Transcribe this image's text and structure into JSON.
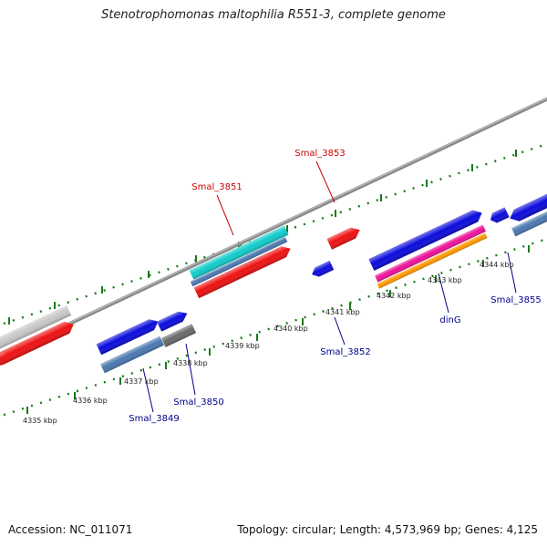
{
  "title": "Stenotrophomonas maltophilia R551-3, complete genome",
  "footer": {
    "accession": "Accession: NC_011071",
    "summary": "Topology: circular; Length: 4,573,969 bp; Genes: 4,125"
  },
  "colors": {
    "backbone": "#8a8a8a",
    "tick": "#1a7a1a",
    "label_forward": "#cc0000",
    "label_reverse": "#00008b",
    "leader_line_forward": "#cc0000",
    "leader_line_reverse": "#00008b"
  },
  "scale": {
    "labels": [
      "4335 kbp",
      "4336 kbp",
      "4337 kbp",
      "4338 kbp",
      "4339 kbp",
      "4340 kbp",
      "4341 kbp",
      "4342 kbp",
      "4343 kbp",
      "4344 kbp"
    ]
  },
  "gene_labels": [
    {
      "text": "Smal_3853",
      "strand": "forward"
    },
    {
      "text": "Smal_3851",
      "strand": "forward"
    },
    {
      "text": "Smal_3852",
      "strand": "reverse"
    },
    {
      "text": "Smal_3855",
      "strand": "reverse"
    },
    {
      "text": "dinG",
      "strand": "reverse"
    },
    {
      "text": "Smal_3850",
      "strand": "reverse"
    },
    {
      "text": "Smal_3849",
      "strand": "reverse"
    }
  ],
  "features": [
    {
      "id": "gene-grey-left",
      "color": "#c8c8c8"
    },
    {
      "id": "gene-red-left-upper",
      "color": "#ee1111"
    },
    {
      "id": "gene-red-left-lower",
      "color": "#ee1111"
    },
    {
      "id": "gene-blue-3849",
      "color": "#0b0bdd"
    },
    {
      "id": "gene-blue-3850",
      "color": "#0b0bdd"
    },
    {
      "id": "cds-steelblue-3849",
      "color": "#4a78b0"
    },
    {
      "id": "cds-grey-3850",
      "color": "#6a6a6a"
    },
    {
      "id": "gene-cyan-3851",
      "color": "#11cccc"
    },
    {
      "id": "cds-steelblue-3851",
      "color": "#4a78b0"
    },
    {
      "id": "gene-red-3851",
      "color": "#ee1111"
    },
    {
      "id": "gene-red-3853",
      "color": "#ee1111"
    },
    {
      "id": "gene-blue-3852",
      "color": "#0b0bdd"
    },
    {
      "id": "gene-blue-dinG",
      "color": "#0b0bdd"
    },
    {
      "id": "rna-magenta-dinG",
      "color": "#ee1199"
    },
    {
      "id": "rna-orange-dinG",
      "color": "#ff9900"
    },
    {
      "id": "gene-blue-right-small",
      "color": "#0b0bdd"
    },
    {
      "id": "gene-blue-3855",
      "color": "#0b0bdd"
    },
    {
      "id": "cds-steelblue-3855",
      "color": "#4a78b0"
    }
  ]
}
